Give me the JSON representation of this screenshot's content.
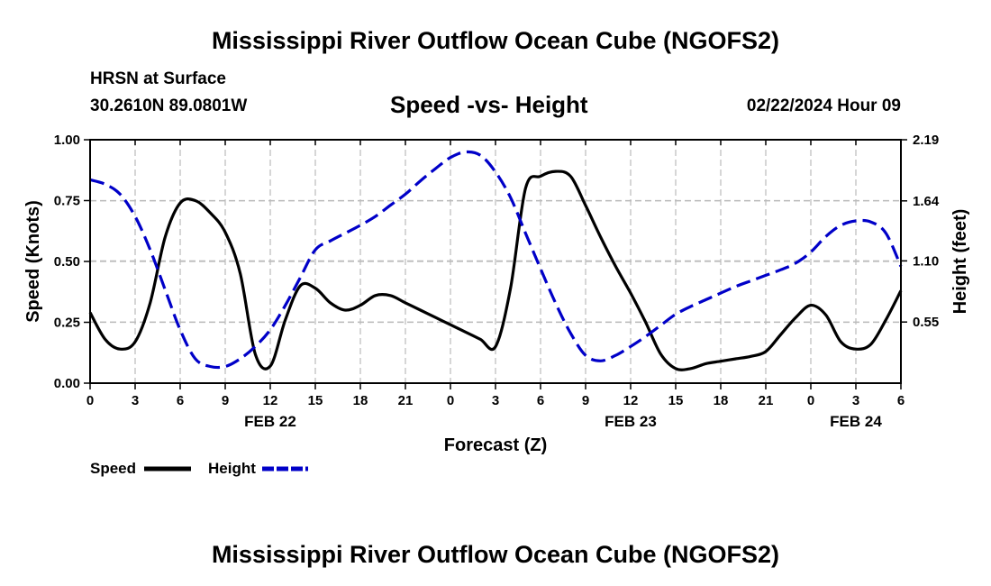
{
  "header": {
    "title": "Mississippi River Outflow Ocean Cube (NGOFS2)",
    "station": "HRSN at Surface",
    "coords": "30.2610N  89.0801W",
    "subtitle": "Speed -vs- Height",
    "datetime": "02/22/2024 Hour 09"
  },
  "footer": {
    "title": "Mississippi River Outflow Ocean Cube (NGOFS2)"
  },
  "colors": {
    "speed": "#000000",
    "height": "#0000c8",
    "grid": "#bbbbbb"
  },
  "chart_data": {
    "type": "line",
    "title": "Speed -vs- Height",
    "xlabel": "Forecast (Z)",
    "ylabel": "Speed (Knots)",
    "y2label": "Height (feet)",
    "xlim": [
      0,
      54
    ],
    "ylim": [
      0,
      1.0
    ],
    "y2lim": [
      0.0,
      2.19
    ],
    "x_ticks": [
      0,
      3,
      6,
      9,
      12,
      15,
      18,
      21,
      24,
      27,
      30,
      33,
      36,
      39,
      42,
      45,
      48,
      51,
      54
    ],
    "x_tick_labels": [
      "0",
      "3",
      "6",
      "9",
      "12",
      "15",
      "18",
      "21",
      "0",
      "3",
      "6",
      "9",
      "12",
      "15",
      "18",
      "21",
      "0",
      "3",
      "6"
    ],
    "date_labels": [
      {
        "x": 12,
        "label": "FEB 22"
      },
      {
        "x": 36,
        "label": "FEB 23"
      },
      {
        "x": 51,
        "label": "FEB 24"
      }
    ],
    "y_ticks": [
      0,
      0.25,
      0.5,
      0.75,
      1.0
    ],
    "y_tick_labels": [
      "0.00",
      "0.25",
      "0.50",
      "0.75",
      "1.00"
    ],
    "y2_ticks": [
      0.55,
      1.1,
      1.64,
      2.19
    ],
    "y2_tick_labels": [
      "0.55",
      "1.10",
      "1.64",
      "2.19"
    ],
    "legend": {
      "placement": "bottom-left",
      "speed_label": "Speed",
      "height_label": "Height"
    },
    "series": [
      {
        "name": "Speed",
        "axis": "left",
        "style": "solid",
        "x": [
          0,
          1,
          2,
          3,
          4,
          5,
          6,
          7,
          8,
          9,
          10,
          11,
          12,
          13,
          14,
          15,
          16,
          17,
          18,
          19,
          20,
          21,
          22,
          23,
          24,
          25,
          26,
          27,
          28,
          29,
          30,
          31,
          32,
          33,
          34,
          35,
          36,
          37,
          38,
          39,
          40,
          41,
          42,
          43,
          44,
          45,
          46,
          47,
          48,
          49,
          50,
          51,
          52,
          53,
          54
        ],
        "values": [
          0.29,
          0.18,
          0.14,
          0.17,
          0.33,
          0.6,
          0.74,
          0.75,
          0.7,
          0.62,
          0.45,
          0.12,
          0.07,
          0.26,
          0.4,
          0.39,
          0.33,
          0.3,
          0.32,
          0.36,
          0.36,
          0.33,
          0.3,
          0.27,
          0.24,
          0.21,
          0.18,
          0.15,
          0.39,
          0.8,
          0.85,
          0.87,
          0.85,
          0.73,
          0.6,
          0.48,
          0.37,
          0.25,
          0.12,
          0.06,
          0.06,
          0.08,
          0.09,
          0.1,
          0.11,
          0.13,
          0.2,
          0.27,
          0.32,
          0.28,
          0.17,
          0.14,
          0.16,
          0.26,
          0.38
        ]
      },
      {
        "name": "Height",
        "axis": "right",
        "style": "dashed",
        "x": [
          0,
          1,
          2,
          3,
          4,
          5,
          6,
          7,
          8,
          9,
          10,
          11,
          12,
          13,
          14,
          15,
          16,
          17,
          18,
          19,
          20,
          21,
          22,
          23,
          24,
          25,
          26,
          27,
          28,
          29,
          30,
          31,
          32,
          33,
          34,
          35,
          36,
          37,
          38,
          39,
          40,
          41,
          42,
          43,
          44,
          45,
          46,
          47,
          48,
          49,
          50,
          51,
          52,
          53,
          54
        ],
        "values": [
          1.83,
          1.79,
          1.7,
          1.5,
          1.2,
          0.84,
          0.48,
          0.22,
          0.15,
          0.15,
          0.22,
          0.33,
          0.48,
          0.7,
          0.95,
          1.2,
          1.28,
          1.35,
          1.42,
          1.5,
          1.6,
          1.7,
          1.82,
          1.93,
          2.03,
          2.08,
          2.05,
          1.9,
          1.67,
          1.35,
          1.03,
          0.72,
          0.45,
          0.25,
          0.2,
          0.25,
          0.33,
          0.42,
          0.52,
          0.62,
          0.69,
          0.75,
          0.81,
          0.87,
          0.92,
          0.97,
          1.02,
          1.08,
          1.18,
          1.32,
          1.42,
          1.46,
          1.45,
          1.35,
          1.05
        ]
      }
    ]
  }
}
